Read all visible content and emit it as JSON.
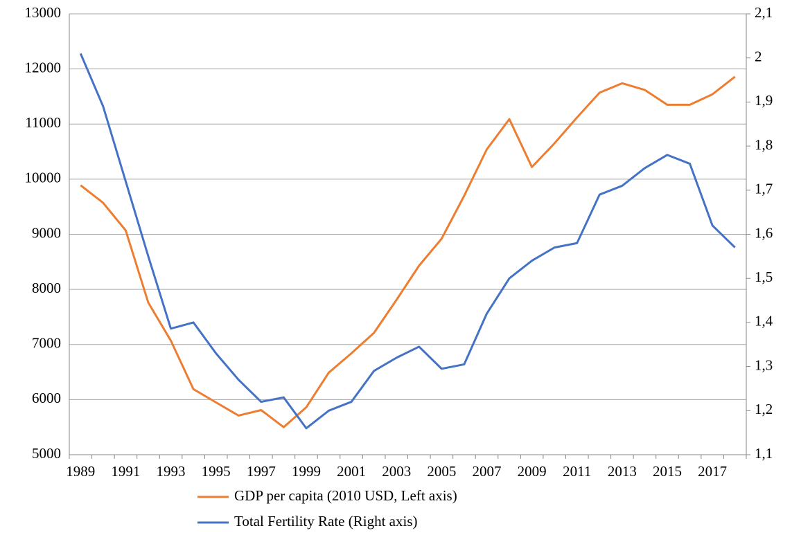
{
  "chart_data": {
    "type": "line",
    "categories": [
      "1989",
      null,
      "1991",
      null,
      "1993",
      null,
      "1995",
      null,
      "1997",
      null,
      "1999",
      null,
      "2001",
      null,
      "2003",
      null,
      "2005",
      null,
      "2007",
      null,
      "2009",
      null,
      "2011",
      null,
      "2013",
      null,
      "2015",
      null,
      "2017",
      null
    ],
    "series": [
      {
        "name": "GDP per capita (2010 USD, Left axis)",
        "color": "#ed7d31",
        "values": [
          9890,
          9570,
          9070,
          7760,
          7070,
          6190,
          5950,
          5710,
          5810,
          5500,
          5860,
          6490,
          6840,
          7210,
          7810,
          8430,
          8920,
          9700,
          10540,
          11090,
          10220,
          10650,
          11120,
          11570,
          11740,
          11620,
          11350,
          11350,
          11540,
          11860
        ]
      },
      {
        "name": "Total Fertility Rate (Right axis)",
        "color": "#4472c4",
        "axis": "y2",
        "values": [
          2.01,
          1.89,
          1.72,
          1.55,
          1.386,
          1.4,
          1.33,
          1.27,
          1.22,
          1.23,
          1.16,
          1.2,
          1.22,
          1.29,
          1.32,
          1.345,
          1.295,
          1.305,
          1.42,
          1.5,
          1.54,
          1.57,
          1.58,
          1.69,
          1.71,
          1.75,
          1.78,
          1.76,
          1.62,
          1.57
        ]
      }
    ],
    "ylim": [
      5000,
      13000
    ],
    "yticks": [
      5000,
      6000,
      7000,
      8000,
      9000,
      10000,
      11000,
      12000,
      13000
    ],
    "y2lim": [
      1.1,
      2.1
    ],
    "y2ticks": [
      {
        "value": 1.1,
        "label": "1,1"
      },
      {
        "value": 1.2,
        "label": "1,2"
      },
      {
        "value": 1.3,
        "label": "1,3"
      },
      {
        "value": 1.4,
        "label": "1,4"
      },
      {
        "value": 1.5,
        "label": "1,5"
      },
      {
        "value": 1.6,
        "label": "1,6"
      },
      {
        "value": 1.7,
        "label": "1,7"
      },
      {
        "value": 1.8,
        "label": "1,8"
      },
      {
        "value": 1.9,
        "label": "1,9"
      },
      2,
      {
        "value": 2.1,
        "label": "2,1"
      }
    ],
    "grid": true,
    "legend": "bottom"
  }
}
